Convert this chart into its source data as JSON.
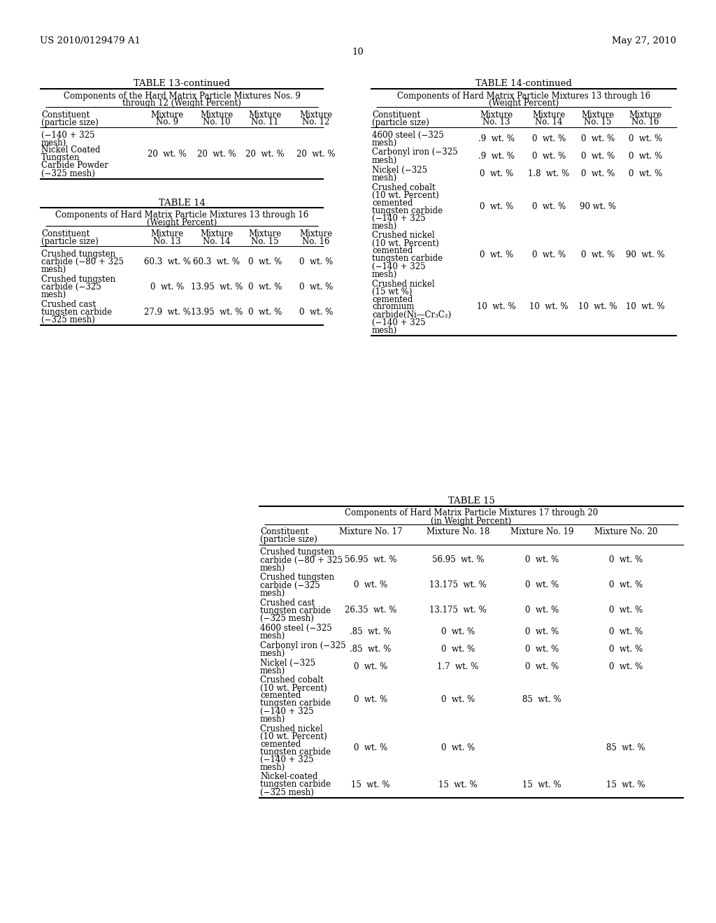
{
  "bg_color": "#ffffff",
  "header_left": "US 2010/0129479 A1",
  "header_right": "May 27, 2010",
  "page_number": "10",
  "table13c": {
    "title": "TABLE 13-continued",
    "subtitle1": "Components of the Hard Matrix Particle Mixtures Nos. 9",
    "subtitle2": "through 12 (Weight Percent)",
    "col_headers": [
      [
        "Constituent",
        "(particle size)"
      ],
      [
        "Mixture",
        "No. 9"
      ],
      [
        "Mixture",
        "No. 10"
      ],
      [
        "Mixture",
        "No. 11"
      ],
      [
        "Mixture",
        "No. 12"
      ]
    ],
    "rows": [
      [
        [
          "(−140 + 325",
          "mesh)",
          "Nickel Coated",
          "Tungsten",
          "Carbide Powder",
          "(−325 mesh)"
        ],
        "20  wt. %",
        "20  wt. %",
        "20  wt. %",
        "20  wt. %"
      ]
    ]
  },
  "table14": {
    "title": "TABLE 14",
    "subtitle1": "Components of Hard Matrix Particle Mixtures 13 through 16",
    "subtitle2": "(Weight Percent)",
    "col_headers": [
      [
        "Constituent",
        "(particle size)"
      ],
      [
        "Mixture",
        "No. 13"
      ],
      [
        "Mixture",
        "No. 14"
      ],
      [
        "Mixture",
        "No. 15"
      ],
      [
        "Mixture",
        "No. 16"
      ]
    ],
    "rows": [
      [
        [
          "Crushed tungsten",
          "carbide (−80 + 325",
          "mesh)"
        ],
        "60.3  wt. %",
        "60.3  wt. %",
        "0  wt. %",
        "0  wt. %"
      ],
      [
        [
          "Crushed tungsten",
          "carbide (−325",
          "mesh)"
        ],
        "0  wt. %",
        "13.95  wt. %",
        "0  wt. %",
        "0  wt. %"
      ],
      [
        [
          "Crushed cast",
          "tungsten carbide",
          "(−325 mesh)"
        ],
        "27.9  wt. %",
        "13.95  wt. %",
        "0  wt. %",
        "0  wt. %"
      ]
    ]
  },
  "table14c": {
    "title": "TABLE 14-continued",
    "subtitle1": "Components of Hard Matrix Particle Mixtures 13 through 16",
    "subtitle2": "(Weight Percent)",
    "col_headers": [
      [
        "Constituent",
        "(particle size)"
      ],
      [
        "Mixture",
        "No. 13"
      ],
      [
        "Mixture",
        "No. 14"
      ],
      [
        "Mixture",
        "No. 15"
      ],
      [
        "Mixture",
        "No. 16"
      ]
    ],
    "rows": [
      [
        [
          "4600 steel (−325",
          "mesh)"
        ],
        ".9  wt. %",
        "0  wt. %",
        "0  wt. %",
        "0  wt. %"
      ],
      [
        [
          "Carbonyl iron (−325",
          "mesh)"
        ],
        ".9  wt. %",
        "0  wt. %",
        "0  wt. %",
        "0  wt. %"
      ],
      [
        [
          "Nickel (−325",
          "mesh)"
        ],
        "0  wt. %",
        "1.8  wt. %",
        "0  wt. %",
        "0  wt. %"
      ],
      [
        [
          "Crushed cobalt",
          "(10 wt. Percent)",
          "cemented",
          "tungsten carbide",
          "(−140 + 325",
          "mesh)"
        ],
        "0  wt. %",
        "0  wt. %",
        "90 wt. %",
        ""
      ],
      [
        [
          "Crushed nickel",
          "(10 wt. Percent)",
          "cemented",
          "tungsten carbide",
          "(−140 + 325",
          "mesh)"
        ],
        "0  wt. %",
        "0  wt. %",
        "0  wt. %",
        "90  wt. %"
      ],
      [
        [
          "Crushed nickel",
          "(15 wt %)",
          "cemented",
          "chromium",
          "carbide(Ni—Cr₃C₂)",
          "(−140 + 325",
          "mesh)"
        ],
        "10  wt. %",
        "10  wt. %",
        "10  wt. %",
        "10  wt. %"
      ]
    ]
  },
  "table15": {
    "title": "TABLE 15",
    "subtitle1": "Components of Hard Matrix Particle Mixtures 17 through 20",
    "subtitle2": "(in Weight Percent)",
    "col_headers": [
      [
        "Constituent",
        "(particle size)"
      ],
      [
        "Mixture No. 17"
      ],
      [
        "Mixture No. 18"
      ],
      [
        "Mixture No. 19"
      ],
      [
        "Mixture No. 20"
      ]
    ],
    "rows": [
      [
        [
          "Crushed tungsten",
          "carbide (−80 + 325",
          "mesh)"
        ],
        "56.95  wt. %",
        "56.95  wt. %",
        "0  wt. %",
        "0  wt. %"
      ],
      [
        [
          "Crushed tungsten",
          "carbide (−325",
          "mesh)"
        ],
        "0  wt. %",
        "13.175  wt. %",
        "0  wt. %",
        "0  wt. %"
      ],
      [
        [
          "Crushed cast",
          "tungsten carbide",
          "(−325 mesh)"
        ],
        "26.35  wt. %",
        "13.175  wt. %",
        "0  wt. %",
        "0  wt. %"
      ],
      [
        [
          "4600 steel (−325",
          "mesh)"
        ],
        ".85  wt. %",
        "0  wt. %",
        "0  wt. %",
        "0  wt. %"
      ],
      [
        [
          "Carbonyl iron (−325",
          "mesh)"
        ],
        ".85  wt. %",
        "0  wt. %",
        "0  wt. %",
        "0  wt. %"
      ],
      [
        [
          "Nickel (−325",
          "mesh)"
        ],
        "0  wt. %",
        "1.7  wt. %",
        "0  wt. %",
        "0  wt. %"
      ],
      [
        [
          "Crushed cobalt",
          "(10 wt. Percent)",
          "cemented",
          "tungsten carbide",
          "(−140 + 325",
          "mesh)"
        ],
        "0  wt. %",
        "0  wt. %",
        "85  wt. %",
        ""
      ],
      [
        [
          "Crushed nickel",
          "(10 wt. Percent)",
          "cemented",
          "tungsten carbide",
          "(−140 + 325",
          "mesh)"
        ],
        "0  wt. %",
        "0  wt. %",
        "",
        "85  wt. %"
      ],
      [
        [
          "Nickel-coated",
          "tungsten carbide",
          "(−325 mesh)"
        ],
        "15  wt. %",
        "15  wt. %",
        "15  wt. %",
        "15  wt. %"
      ]
    ]
  }
}
